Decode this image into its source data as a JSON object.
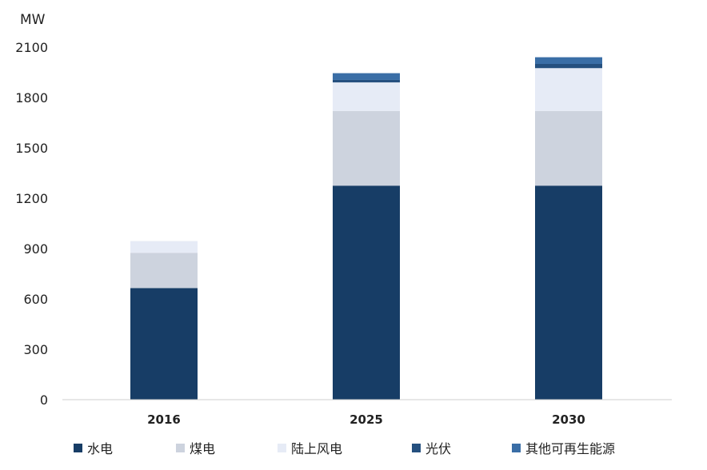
{
  "chart_data": {
    "type": "stacked-bar",
    "ylabel": "MW",
    "ylim": [
      0,
      2100
    ],
    "yticks": [
      "0",
      "300",
      "600",
      "900",
      "1200",
      "1500",
      "1800",
      "2100"
    ],
    "categories": [
      "2016",
      "2025",
      "2030"
    ],
    "legend_position": "bottom",
    "grid": false,
    "series": [
      {
        "name": "水电",
        "color": "#173d66",
        "values": [
          665,
          1275,
          1275
        ]
      },
      {
        "name": "煤电",
        "color": "#cdd3de",
        "values": [
          210,
          445,
          445
        ]
      },
      {
        "name": "陆上风电",
        "color": "#e6ebf6",
        "values": [
          70,
          170,
          255
        ]
      },
      {
        "name": "光伏",
        "color": "#25507f",
        "values": [
          0,
          15,
          25
        ]
      },
      {
        "name": "其他可再生能源",
        "color": "#3a6ea6",
        "values": [
          0,
          40,
          40
        ]
      }
    ]
  }
}
